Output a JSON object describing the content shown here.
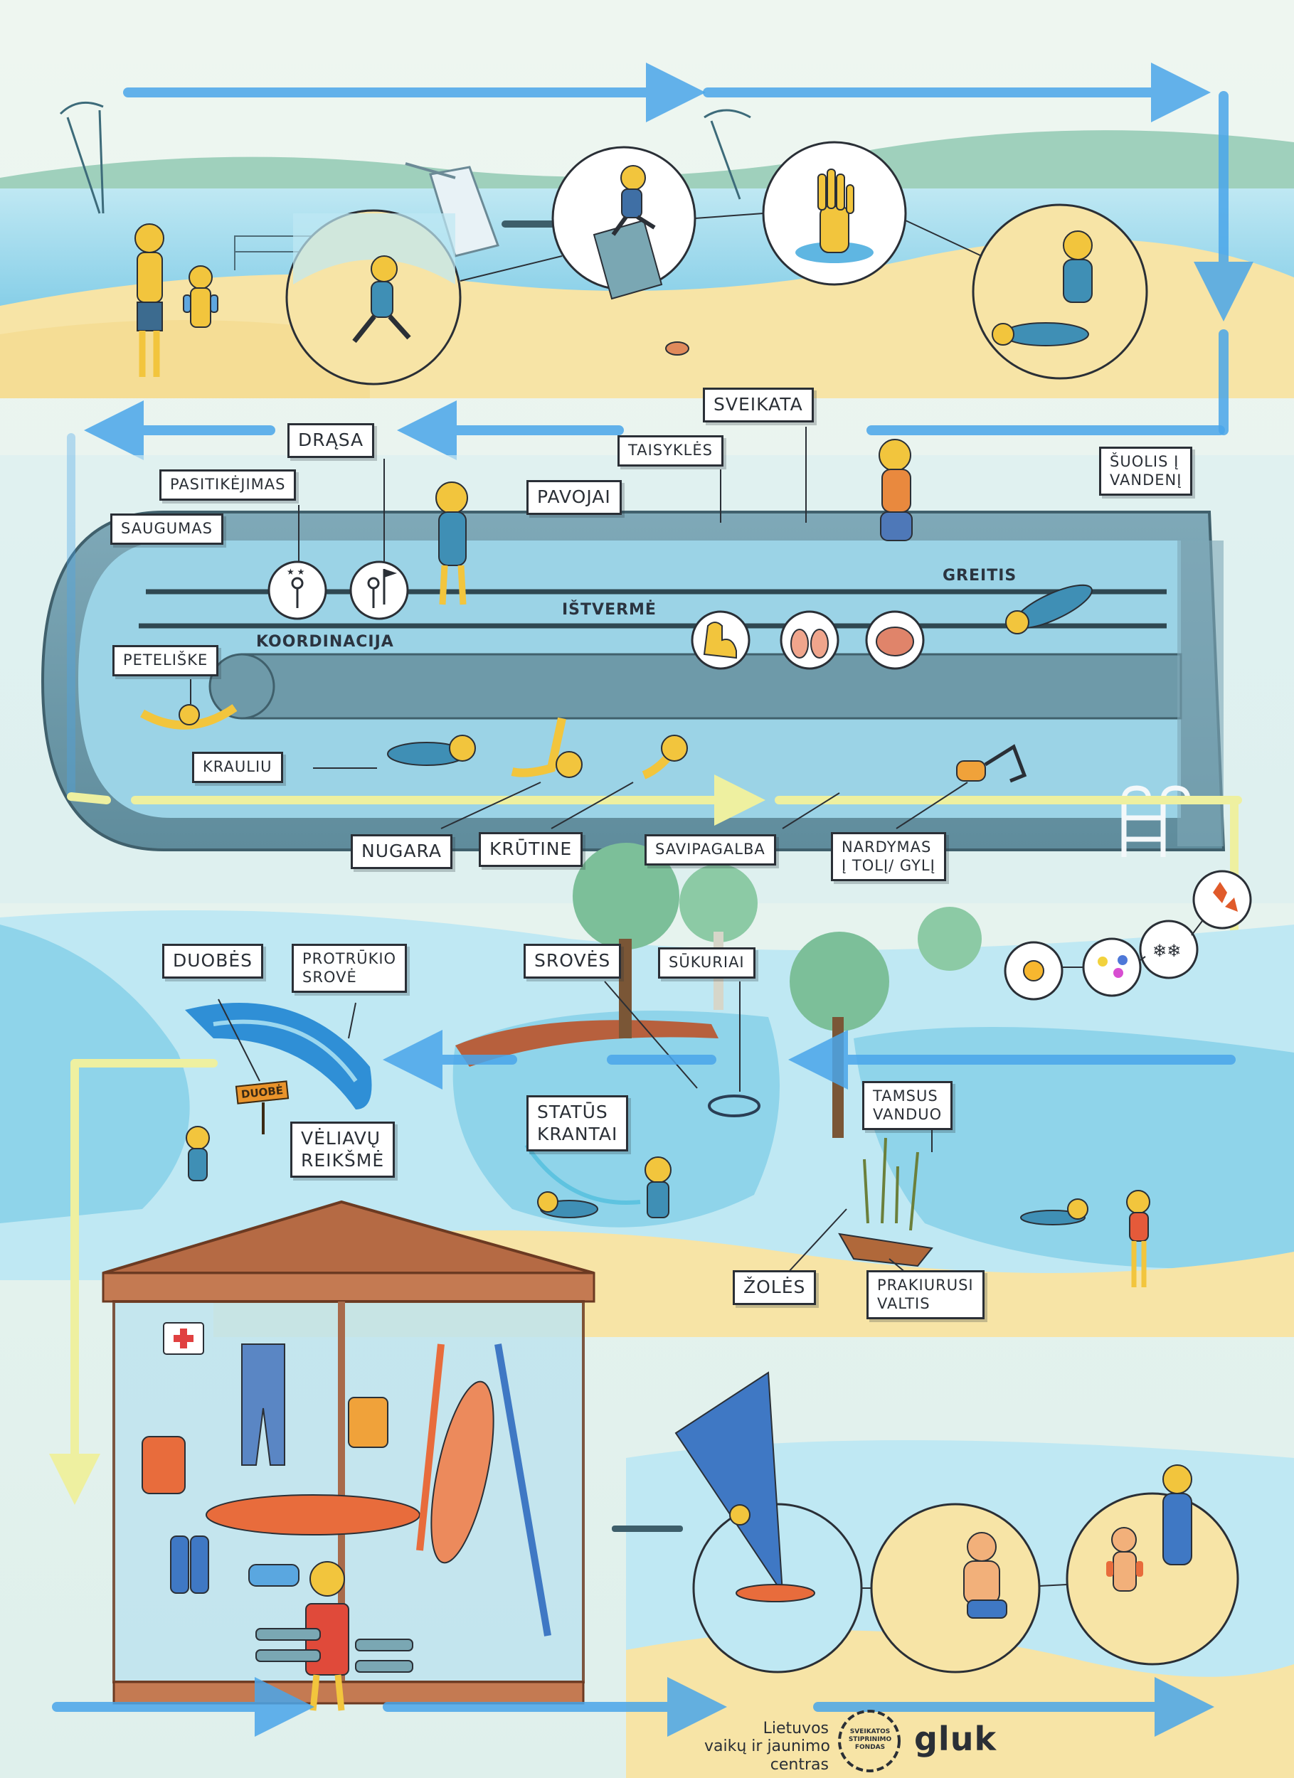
{
  "labels": {
    "sveikata": "SVEIKATA",
    "drasa": "DRĄSA",
    "taisykles": "TAISYKLĖS",
    "pasitikejimas": "PASITIKĖJIMAS",
    "pavojai": "PAVOJAI",
    "saugumas": "SAUGUMAS",
    "suolis": "ŠUOLIS Į\nVANDENĮ",
    "greitis": "GREITIS",
    "istverme": "IŠTVERMĖ",
    "koordinacija": "KOORDINACIJA",
    "peteliske": "PETELIŠKE",
    "krauliu": "KRAULIU",
    "nugara": "NUGARA",
    "krutine": "KRŪTINE",
    "savipagalba": "SAVIPAGALBA",
    "nardymas": "NARDYMAS\nĮ TOLĮ/ GYLĮ",
    "duobes": "DUOBĖS",
    "protrukio": "PROTRŪKIO\nSROVĖ",
    "droves": "SROVĖS",
    "sukuriai": "SŪKURIAI",
    "status": "STATŪS\nKRANTAI",
    "veliavu": "VĖLIAVŲ\nREIKŠMĖ",
    "tamsus": "TAMSUS\nVANDUO",
    "zoles": "ŽOLĖS",
    "prakiurusi": "PRAKIURUSI\nVALTIS",
    "duobe_sign": "DUOBĖ"
  },
  "logos": {
    "ljc_line1": "Lietuvos",
    "ljc_line2": "vaikų ir jaunimo",
    "ljc_line3": "centras",
    "fund_line1": "SVEIKATOS",
    "fund_line2": "STIPRINIMO",
    "fund_line3": "FONDAS",
    "gluk": "gluk"
  },
  "colors": {
    "arrow_blue": "#4aa6ea",
    "arrow_yellow": "#f3f1a0",
    "sand": "#f7e4a6",
    "water": "#8fd4ea",
    "pool": "#6e9aa9",
    "label_border": "#2a2f36",
    "character": "#f2c53d"
  },
  "icons": [
    "kitesurf-icon",
    "diving-tower-icon",
    "dive-board-scene",
    "raised-hand-icon",
    "rescue-scene",
    "coordination-icon",
    "courage-flag-icon",
    "muscle-arm-icon",
    "lungs-icon",
    "brain-icon",
    "snorkel-mask-icon",
    "pool-ladder-icon",
    "sun-icon",
    "flowers-icon",
    "snowflakes-icon",
    "autumn-leaves-icon",
    "first-aid-icon",
    "boat-icon",
    "windsurf-scene"
  ]
}
